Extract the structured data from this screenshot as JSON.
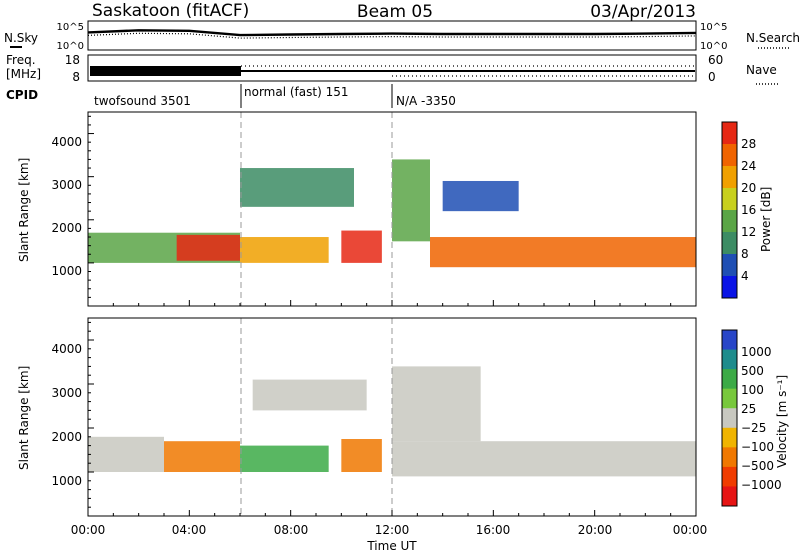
{
  "header": {
    "station": "Saskatoon (fitACF)",
    "beam": "Beam 05",
    "date": "03/Apr/2013"
  },
  "sky_panel": {
    "left_label": "N.Sky",
    "left_ticks": [
      "10^5",
      "10^0"
    ],
    "right_label": "N.Search",
    "right_ticks": [
      "10^5",
      "10^0"
    ]
  },
  "freq_panel": {
    "left_label_1": "Freq.",
    "left_label_2": "[MHz]",
    "left_ticks": [
      "18",
      "8"
    ],
    "right_label": "Nave",
    "right_ticks": [
      "60",
      "0"
    ]
  },
  "cpid": {
    "label": "CPID",
    "segments": [
      {
        "text": "twofsound 3501",
        "start_hour": 0,
        "end_hour": 6
      },
      {
        "text": "normal (fast) 151",
        "start_hour": 6,
        "end_hour": 12
      },
      {
        "text": "N/A -3350",
        "start_hour": 12,
        "end_hour": 24
      }
    ]
  },
  "power_panel": {
    "ylabel": "Slant Range [km]",
    "yticks": [
      "1000",
      "2000",
      "3000",
      "4000"
    ],
    "colorbar_label": "Power [dB]",
    "colorbar_ticks": [
      "4",
      "8",
      "12",
      "16",
      "20",
      "24",
      "28"
    ],
    "colorbar_colors": [
      "#0a14e6",
      "#1f4fb4",
      "#3c8c64",
      "#5aa546",
      "#c8d01e",
      "#f0a000",
      "#f06400",
      "#e62814"
    ]
  },
  "velocity_panel": {
    "ylabel": "Slant Range [km]",
    "yticks": [
      "1000",
      "2000",
      "3000",
      "4000"
    ],
    "colorbar_label": "Velocity [m s⁻¹]",
    "colorbar_ticks": [
      "1000",
      "500",
      "100",
      "25",
      "−25",
      "−100",
      "−500",
      "−1000"
    ],
    "colorbar_colors": [
      "#2846c8",
      "#1e8c8c",
      "#3caa46",
      "#78c83c",
      "#c8c8c0",
      "#f0b400",
      "#f07800",
      "#f03c00",
      "#e61414"
    ]
  },
  "x_axis": {
    "label": "Time UT",
    "ticks": [
      "00:00",
      "04:00",
      "08:00",
      "12:00",
      "16:00",
      "20:00",
      "00:00"
    ]
  },
  "chart_data": [
    {
      "type": "line",
      "title": "Saskatoon (fitACF)  Beam 05  03/Apr/2013",
      "description_series": [
        "N.Sky",
        "N.Search"
      ],
      "x_unit": "hour UT",
      "xlim": [
        0,
        24
      ],
      "series": [
        {
          "name": "N.Sky",
          "x": [
            0,
            2,
            4,
            6,
            8,
            10,
            12,
            14,
            16,
            18,
            20,
            22,
            24
          ],
          "values": [
            1000,
            2500,
            2000,
            300,
            400,
            500,
            600,
            500,
            500,
            500,
            500,
            600,
            800
          ]
        }
      ],
      "ylim": [
        1,
        100000
      ],
      "yscale": "log"
    },
    {
      "type": "line",
      "series": [
        {
          "name": "Freq. [MHz]",
          "x": [
            0,
            6,
            12,
            24
          ],
          "values": [
            11,
            11,
            10,
            10
          ]
        },
        {
          "name": "Nave",
          "x": [
            0,
            6,
            12,
            24
          ],
          "values": [
            60,
            35,
            20,
            20
          ]
        }
      ],
      "ylim": [
        8,
        18
      ]
    },
    {
      "type": "heatmap",
      "variable": "Power [dB]",
      "x_unit": "hour UT",
      "y_unit": "Slant Range [km]",
      "xlim": [
        0,
        24
      ],
      "ylim": [
        0,
        4500
      ],
      "color_levels": [
        4,
        8,
        12,
        16,
        20,
        24,
        28
      ],
      "regions": [
        {
          "x0": 0.0,
          "x1": 6.0,
          "y0": 1000,
          "y1": 1700,
          "value": 14
        },
        {
          "x0": 3.5,
          "x1": 6.0,
          "y0": 1050,
          "y1": 1650,
          "value": 28
        },
        {
          "x0": 6.0,
          "x1": 9.5,
          "y0": 1000,
          "y1": 1600,
          "value": 20
        },
        {
          "x0": 6.0,
          "x1": 10.5,
          "y0": 2300,
          "y1": 3200,
          "value": 10
        },
        {
          "x0": 10.0,
          "x1": 11.6,
          "y0": 1000,
          "y1": 1750,
          "value": 28
        },
        {
          "x0": 12.0,
          "x1": 13.5,
          "y0": 1500,
          "y1": 3400,
          "value": 14
        },
        {
          "x0": 13.5,
          "x1": 24.0,
          "y0": 900,
          "y1": 1600,
          "value": 24
        },
        {
          "x0": 14.0,
          "x1": 17.0,
          "y0": 2200,
          "y1": 2900,
          "value": 6
        }
      ]
    },
    {
      "type": "heatmap",
      "variable": "Velocity [m s⁻¹]",
      "x_unit": "hour UT",
      "y_unit": "Slant Range [km]",
      "xlim": [
        0,
        24
      ],
      "ylim": [
        0,
        4500
      ],
      "color_levels": [
        -1000,
        -500,
        -100,
        -25,
        25,
        100,
        500,
        1000
      ],
      "regions": [
        {
          "x0": 0.0,
          "x1": 3.0,
          "y0": 1000,
          "y1": 1800,
          "value": 0
        },
        {
          "x0": 3.0,
          "x1": 6.0,
          "y0": 1000,
          "y1": 1700,
          "value": -120
        },
        {
          "x0": 6.0,
          "x1": 9.5,
          "y0": 1000,
          "y1": 1600,
          "value": 150
        },
        {
          "x0": 6.5,
          "x1": 11.0,
          "y0": 2400,
          "y1": 3100,
          "value": 0
        },
        {
          "x0": 10.0,
          "x1": 11.6,
          "y0": 1000,
          "y1": 1750,
          "value": -300
        },
        {
          "x0": 12.0,
          "x1": 24.0,
          "y0": 900,
          "y1": 1700,
          "value": 0
        },
        {
          "x0": 12.0,
          "x1": 15.5,
          "y0": 1700,
          "y1": 3400,
          "value": 0
        }
      ]
    }
  ]
}
